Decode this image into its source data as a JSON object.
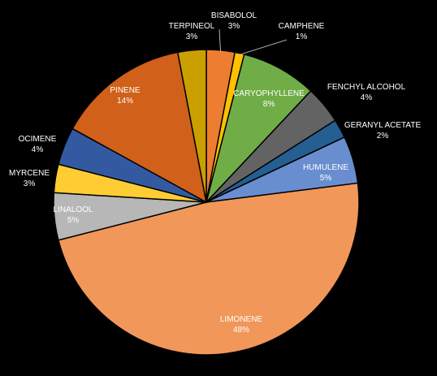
{
  "chart_data": {
    "type": "pie",
    "title": "",
    "start_angle_deg": 0,
    "direction": "clockwise",
    "slices": [
      {
        "label": "BISABOLOL",
        "value": 3,
        "pct_label": "3%",
        "color": "#ED7D31"
      },
      {
        "label": "CAMPHENE",
        "value": 1,
        "pct_label": "1%",
        "color": "#FFC000"
      },
      {
        "label": "CARYOPHYLLENE",
        "value": 8,
        "pct_label": "8%",
        "color": "#70AD47"
      },
      {
        "label": "FENCHYL ALCOHOL",
        "value": 4,
        "pct_label": "4%",
        "color": "#636363"
      },
      {
        "label": "GERANYL ACETATE",
        "value": 2,
        "pct_label": "2%",
        "color": "#255E91"
      },
      {
        "label": "HUMULENE",
        "value": 5,
        "pct_label": "5%",
        "color": "#698ED0"
      },
      {
        "label": "LIMONENE",
        "value": 48,
        "pct_label": "48%",
        "color": "#F1975A"
      },
      {
        "label": "LINALOOL",
        "value": 5,
        "pct_label": "5%",
        "color": "#B7B7B7"
      },
      {
        "label": "MYRCENE",
        "value": 3,
        "pct_label": "3%",
        "color": "#FFCD33"
      },
      {
        "label": "OCIMENE",
        "value": 4,
        "pct_label": "4%",
        "color": "#335AA1"
      },
      {
        "label": "PINENE",
        "value": 14,
        "pct_label": "14%",
        "color": "#D0601A"
      },
      {
        "label": "TERPINEOL",
        "value": 3,
        "pct_label": "3%",
        "color": "#C9A000"
      }
    ],
    "label_style": {
      "inside_color": "#FFFFFF",
      "outside_color": "#FFFFFF"
    },
    "legend": "none"
  }
}
